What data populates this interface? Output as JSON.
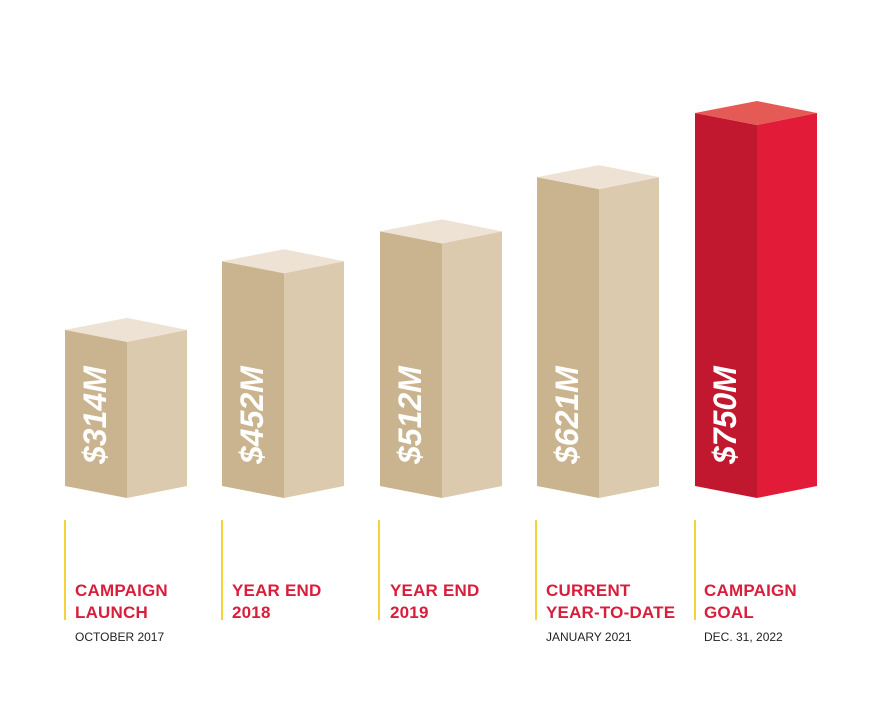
{
  "chart_data": {
    "type": "bar",
    "categories": [
      {
        "line1": "CAMPAIGN",
        "line2": "LAUNCH",
        "date": "OCTOBER 2017"
      },
      {
        "line1": "YEAR END",
        "line2": "2018",
        "date": ""
      },
      {
        "line1": "YEAR END",
        "line2": "2019",
        "date": ""
      },
      {
        "line1": "CURRENT",
        "line2": "YEAR-TO-DATE",
        "date": "JANUARY 2021"
      },
      {
        "line1": "CAMPAIGN",
        "line2": "GOAL",
        "date": "DEC. 31, 2022"
      }
    ],
    "values": [
      314,
      452,
      512,
      621,
      750
    ],
    "value_labels": [
      "$314M",
      "$452M",
      "$512M",
      "$621M",
      "$750M"
    ],
    "unit": "$M",
    "highlight_index": 4,
    "colors": {
      "tan_front": "#c9b48f",
      "tan_side": "#dccaae",
      "tan_top": "#ede2d4",
      "red_front": "#c11830",
      "red_side": "#e21b39",
      "red_top": "#e55a55",
      "category_text": "#d81e3c",
      "divider": "#f2d33a"
    }
  }
}
